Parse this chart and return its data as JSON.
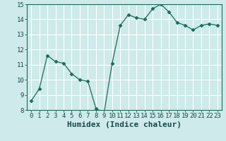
{
  "x": [
    0,
    1,
    2,
    3,
    4,
    5,
    6,
    7,
    8,
    9,
    10,
    11,
    12,
    13,
    14,
    15,
    16,
    17,
    18,
    19,
    20,
    21,
    22,
    23
  ],
  "y": [
    8.6,
    9.4,
    11.6,
    11.2,
    11.1,
    10.4,
    10.0,
    9.9,
    8.1,
    7.8,
    11.1,
    13.6,
    14.3,
    14.1,
    14.0,
    14.7,
    15.0,
    14.5,
    13.8,
    13.6,
    13.3,
    13.6,
    13.7,
    13.6
  ],
  "line_color": "#1a6b5a",
  "marker": "D",
  "marker_size": 2.5,
  "bg_color": "#ceeaea",
  "grid_color": "#ffffff",
  "tick_color": "#1a6b5a",
  "label_color": "#1a4a4a",
  "xlabel": "Humidex (Indice chaleur)",
  "ylim": [
    8,
    15
  ],
  "xlim_min": -0.5,
  "xlim_max": 23.5,
  "yticks": [
    8,
    9,
    10,
    11,
    12,
    13,
    14,
    15
  ],
  "xticks": [
    0,
    1,
    2,
    3,
    4,
    5,
    6,
    7,
    8,
    9,
    10,
    11,
    12,
    13,
    14,
    15,
    16,
    17,
    18,
    19,
    20,
    21,
    22,
    23
  ],
  "font_family": "monospace",
  "xlabel_fontsize": 8,
  "tick_fontsize": 6.5
}
